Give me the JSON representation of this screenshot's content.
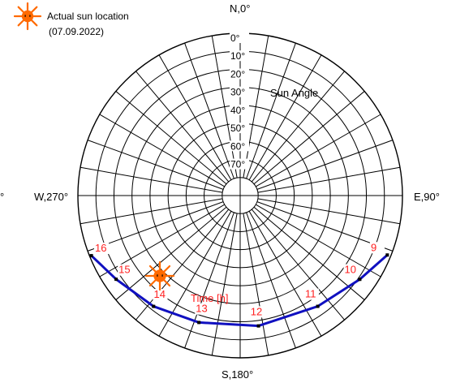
{
  "legend": {
    "line1": "Actual sun location",
    "line2": "(07.09.2022)",
    "icon": "sun-icon"
  },
  "chart_data": {
    "type": "polar",
    "directions": {
      "north": "N,0°",
      "east": "E,90°",
      "south": "S,180°",
      "west": "W,270°",
      "west_cut": "°"
    },
    "elevation_ticks": [
      "0°",
      "10°",
      "20°",
      "30°",
      "40°",
      "50°",
      "60°",
      "70°"
    ],
    "elevation_values": [
      0,
      10,
      20,
      30,
      40,
      50,
      60,
      70
    ],
    "azimuth_step": 10,
    "radial_axis_label": "Sun Angle",
    "hour_axis_label": "Time [h]",
    "sun_path": {
      "hours": [
        9,
        10,
        11,
        12,
        13,
        14,
        15,
        16
      ],
      "azimuth": [
        112,
        125,
        145,
        172,
        198,
        218,
        236,
        248
      ],
      "elevation": [
        2,
        9,
        15,
        17,
        16,
        12,
        7,
        1
      ],
      "color": "#1010c0"
    },
    "current_sun": {
      "azimuth": 225,
      "elevation": 27
    },
    "hour_label_color": "#ff2020",
    "sun_icon_color": "#ff6a00"
  }
}
